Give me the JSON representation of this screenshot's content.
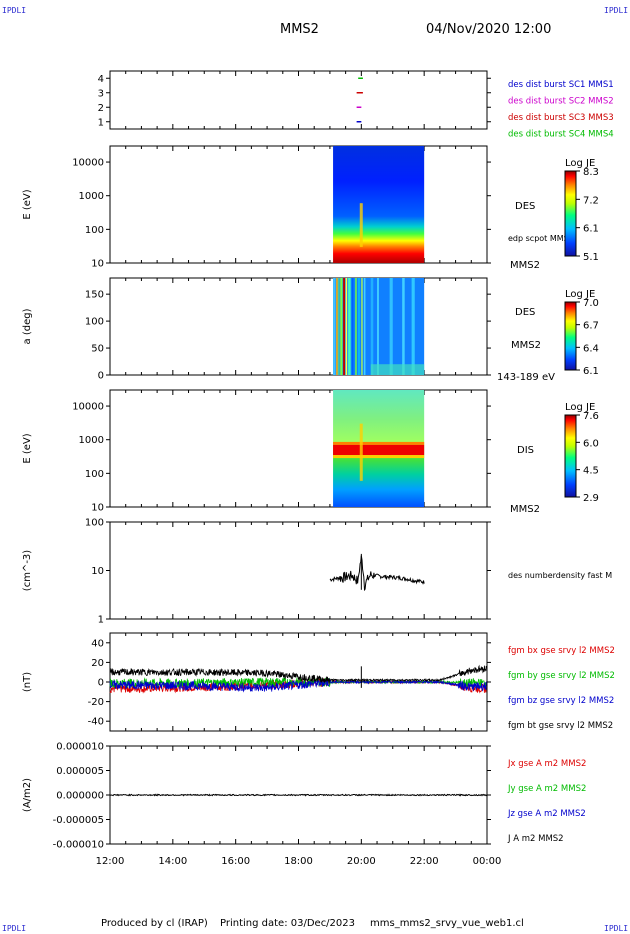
{
  "header": {
    "corner_label": "IPDLI",
    "spacecraft": "MMS2",
    "datetime": "04/Nov/2020 12:00"
  },
  "footer": {
    "produced_by": "Produced by cl (IRAP)",
    "printing_date": "Printing date: 03/Dec/2023",
    "filename": "mms_mms2_srvy_vue_web1.cl"
  },
  "time_axis": {
    "ticks": [
      "12:00",
      "14:00",
      "16:00",
      "18:00",
      "20:00",
      "22:00",
      "00:00"
    ],
    "start_hour": 12,
    "end_hour": 24
  },
  "panels": {
    "burst": {
      "yticks": [
        "4",
        "3",
        "2",
        "1"
      ],
      "labels": [
        {
          "text": "des dist burst SC1 MMS1",
          "color": "#0000cc"
        },
        {
          "text": "des dist burst SC2 MMS2",
          "color": "#cc00cc"
        },
        {
          "text": "des dist burst SC3 MMS3",
          "color": "#cc0000"
        },
        {
          "text": "des dist burst SC4 MMS4",
          "color": "#00bb00"
        }
      ]
    },
    "des_energy": {
      "ylabel": "E (eV)",
      "yticks": [
        "10000",
        "1000",
        "100",
        "10"
      ],
      "right_label": "DES",
      "right_sub": "edp scpot MMS2",
      "bottom_label": "MMS2",
      "cbar_title": "Log JE",
      "cbar_ticks": [
        "8.3",
        "7.2",
        "6.1",
        "5.1"
      ]
    },
    "des_pitch": {
      "ylabel": "a (deg)",
      "yticks": [
        "150",
        "100",
        "50",
        "0"
      ],
      "right_label": "DES",
      "right_sub": "MMS2",
      "bottom_label": "143-189 eV",
      "cbar_title": "Log JE",
      "cbar_ticks": [
        "7.0",
        "6.7",
        "6.4",
        "6.1"
      ]
    },
    "dis_energy": {
      "ylabel": "E (eV)",
      "yticks": [
        "10000",
        "1000",
        "100",
        "10"
      ],
      "right_label": "DIS",
      "bottom_label": "MMS2",
      "cbar_title": "Log JE",
      "cbar_ticks": [
        "7.6",
        "6.0",
        "4.5",
        "2.9"
      ]
    },
    "density": {
      "ylabel": "(cm^-3)",
      "yticks": [
        "100",
        "10",
        "1"
      ],
      "label": "des numberdensity fast M"
    },
    "fgm": {
      "ylabel": "(nT)",
      "yticks": [
        "40",
        "20",
        "0",
        "-20",
        "-40"
      ],
      "labels": [
        {
          "text": "fgm bx gse srvy l2 MMS2",
          "color": "#dd0000"
        },
        {
          "text": "fgm by gse srvy l2 MMS2",
          "color": "#00bb00"
        },
        {
          "text": "fgm bz gse srvy l2 MMS2",
          "color": "#0000cc"
        },
        {
          "text": "fgm bt gse srvy l2 MMS2",
          "color": "#000000"
        }
      ]
    },
    "current": {
      "ylabel": "(A/m2)",
      "yticks": [
        "0.000010",
        "0.000005",
        "0.000000",
        "-0.000005",
        "-0.000010"
      ],
      "labels": [
        {
          "text": "Jx gse A m2 MMS2",
          "color": "#dd0000"
        },
        {
          "text": "Jy gse A m2 MMS2",
          "color": "#00bb00"
        },
        {
          "text": "Jz gse A m2 MMS2",
          "color": "#0000cc"
        },
        {
          "text": "J A m2 MMS2",
          "color": "#000000"
        }
      ]
    }
  },
  "chart_data": [
    {
      "type": "scatter",
      "title": "",
      "x_range_hours": [
        12,
        24
      ],
      "y_range": [
        0.5,
        4.5
      ],
      "series": [
        {
          "name": "des dist burst SC1 MMS1",
          "y": 1,
          "x": [
            19.85,
            20.0
          ],
          "color": "#0000cc"
        },
        {
          "name": "des dist burst SC2 MMS2",
          "y": 2,
          "x": [
            19.85,
            20.0
          ],
          "color": "#cc00cc"
        },
        {
          "name": "des dist burst SC3 MMS3",
          "y": 3,
          "x": [
            19.85,
            20.05
          ],
          "color": "#cc0000"
        },
        {
          "name": "des dist burst SC4 MMS4",
          "y": 4,
          "x": [
            19.9,
            20.05
          ],
          "color": "#00bb00"
        }
      ]
    },
    {
      "type": "heatmap",
      "ylabel": "E (eV)",
      "yscale": "log",
      "ylim": [
        10,
        30000
      ],
      "data_interval_hours": [
        19.1,
        22.0
      ],
      "colorbar": "Log JE",
      "clim": [
        5.1,
        8.3
      ]
    },
    {
      "type": "heatmap",
      "ylabel": "a (deg)",
      "ylim": [
        0,
        180
      ],
      "data_interval_hours": [
        19.1,
        22.0
      ],
      "colorbar": "Log JE",
      "clim": [
        6.1,
        7.0
      ]
    },
    {
      "type": "heatmap",
      "ylabel": "E (eV)",
      "yscale": "log",
      "ylim": [
        10,
        30000
      ],
      "data_interval_hours": [
        19.1,
        22.0
      ],
      "colorbar": "Log JE",
      "clim": [
        2.9,
        7.6
      ]
    },
    {
      "type": "line",
      "ylabel": "(cm^-3)",
      "yscale": "log",
      "ylim": [
        1,
        100
      ],
      "series": [
        {
          "name": "des numberdensity fast M",
          "x": [
            19.0,
            19.4,
            19.7,
            19.9,
            20.0,
            20.1,
            20.3,
            20.6,
            21.0,
            21.4,
            21.7,
            22.0
          ],
          "y": [
            6.5,
            7.2,
            8.0,
            6.0,
            18.0,
            5.0,
            8.2,
            7.6,
            7.3,
            6.8,
            6.2,
            5.8
          ]
        }
      ]
    },
    {
      "type": "line",
      "ylabel": "(nT)",
      "ylim": [
        -50,
        50
      ],
      "series": [
        {
          "name": "fgm bx gse srvy l2 MMS2",
          "x": [
            12,
            15,
            17,
            19,
            22.5,
            23.5,
            24
          ],
          "y": [
            -7,
            -5,
            -3,
            0,
            0,
            -6,
            -7
          ]
        },
        {
          "name": "fgm by gse srvy l2 MMS2",
          "x": [
            12,
            15,
            17,
            19,
            22.5,
            23.5,
            24
          ],
          "y": [
            -1,
            -1,
            0,
            0,
            0,
            -1,
            -1
          ]
        },
        {
          "name": "fgm bz gse srvy l2 MMS2",
          "x": [
            12,
            15,
            17,
            19,
            22.5,
            23.5,
            24
          ],
          "y": [
            -3,
            -4,
            -6,
            0,
            0,
            -5,
            -4
          ]
        },
        {
          "name": "fgm bt gse srvy l2 MMS2",
          "x": [
            12,
            15,
            17,
            19,
            22.5,
            23.5,
            24
          ],
          "y": [
            10,
            10,
            9,
            2,
            2,
            12,
            14
          ]
        }
      ]
    },
    {
      "type": "line",
      "ylabel": "(A/m2)",
      "ylim": [
        -1e-05,
        1e-05
      ],
      "series": [
        {
          "name": "J A m2 MMS2",
          "x": [
            12,
            24
          ],
          "y": [
            0.0,
            0.0
          ]
        }
      ]
    }
  ]
}
